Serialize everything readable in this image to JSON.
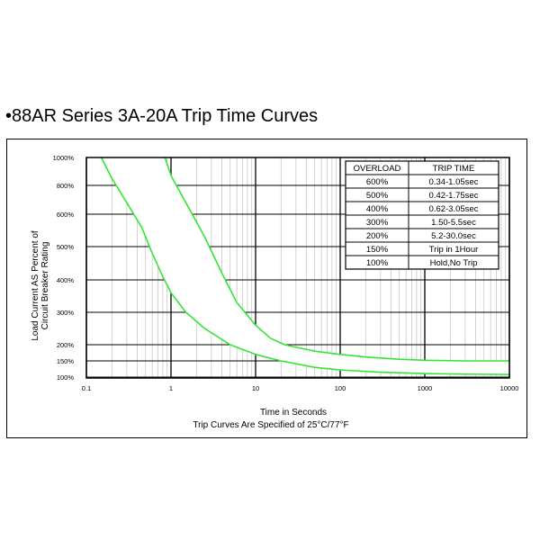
{
  "title": "•88AR Series 3A-20A Trip Time Curves",
  "chart_data": {
    "type": "line",
    "xlabel": "Time in Seconds",
    "ylabel_lines": [
      "Load Current AS Percent of",
      "Circuit Breaker Rating"
    ],
    "note": "Trip Curves Are Specified of 25°C/77°F",
    "x_scale": "log",
    "xlim": [
      0.1,
      10000
    ],
    "x_ticks": [
      {
        "value": 0.1,
        "label": "0.1"
      },
      {
        "value": 1,
        "label": "1"
      },
      {
        "value": 10,
        "label": "10"
      },
      {
        "value": 100,
        "label": "100"
      },
      {
        "value": 1000,
        "label": "1000"
      },
      {
        "value": 10000,
        "label": "10000"
      }
    ],
    "y_ticks": [
      {
        "value": 100,
        "label": "100%"
      },
      {
        "value": 150,
        "label": "150%"
      },
      {
        "value": 200,
        "label": "200%"
      },
      {
        "value": 300,
        "label": "300%"
      },
      {
        "value": 400,
        "label": "400%"
      },
      {
        "value": 500,
        "label": "500%"
      },
      {
        "value": 600,
        "label": "600%"
      },
      {
        "value": 800,
        "label": "800%"
      },
      {
        "value": 1000,
        "label": "1000%"
      }
    ],
    "grid": true,
    "line_color": "#33e633",
    "series": [
      {
        "x": [
          0.15,
          0.2,
          0.3,
          0.45,
          0.6,
          0.8,
          1.0,
          1.5,
          2.5,
          5,
          10,
          20,
          50,
          100,
          300,
          1000,
          3000,
          10000
        ],
        "y": [
          1000,
          850,
          680,
          560,
          480,
          410,
          360,
          300,
          250,
          200,
          170,
          150,
          130,
          122,
          115,
          111,
          109,
          108
        ]
      },
      {
        "x": [
          0.85,
          1.0,
          1.5,
          2.5,
          4,
          6,
          10,
          15,
          22,
          30,
          50,
          100,
          200,
          500,
          1000,
          3000,
          10000
        ],
        "y": [
          1000,
          870,
          680,
          530,
          420,
          330,
          260,
          220,
          200,
          192,
          180,
          170,
          162,
          155,
          152,
          150,
          150
        ]
      }
    ]
  },
  "table": {
    "headers": [
      "OVERLOAD",
      "TRIP TIME"
    ],
    "rows": [
      [
        "600%",
        "0.34-1.05sec"
      ],
      [
        "500%",
        "0.42-1.75sec"
      ],
      [
        "400%",
        "0.62-3.05sec"
      ],
      [
        "300%",
        "1.50-5.5sec"
      ],
      [
        "200%",
        "5.2-30.0sec"
      ],
      [
        "150%",
        "Trip in 1Hour"
      ],
      [
        "100%",
        "Hold,No Trip"
      ]
    ]
  }
}
